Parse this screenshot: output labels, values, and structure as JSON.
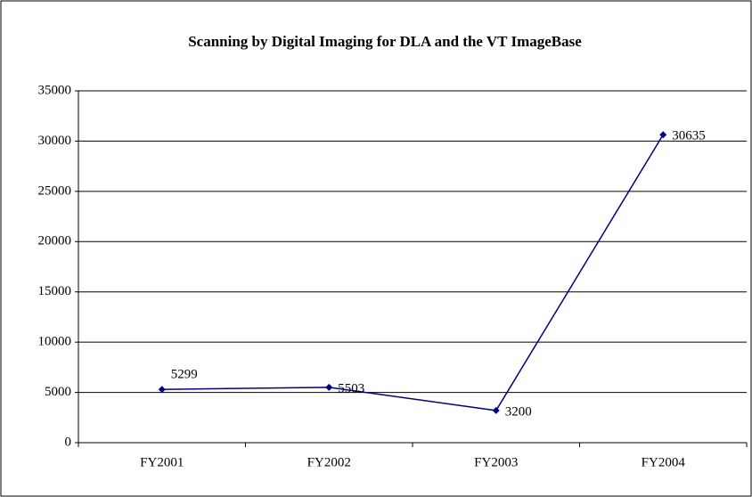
{
  "chart_data": {
    "type": "line",
    "title": "Scanning by Digital Imaging for DLA and the VT ImageBase",
    "categories": [
      "FY2001",
      "FY2002",
      "FY2003",
      "FY2004"
    ],
    "series": [
      {
        "name": null,
        "color": "#000080",
        "values": [
          5299,
          5503,
          3200,
          30635
        ]
      }
    ],
    "ylim": [
      0,
      35000
    ],
    "yticks": [
      0,
      5000,
      10000,
      15000,
      20000,
      25000,
      30000,
      35000
    ],
    "grid": true,
    "legend": false
  }
}
